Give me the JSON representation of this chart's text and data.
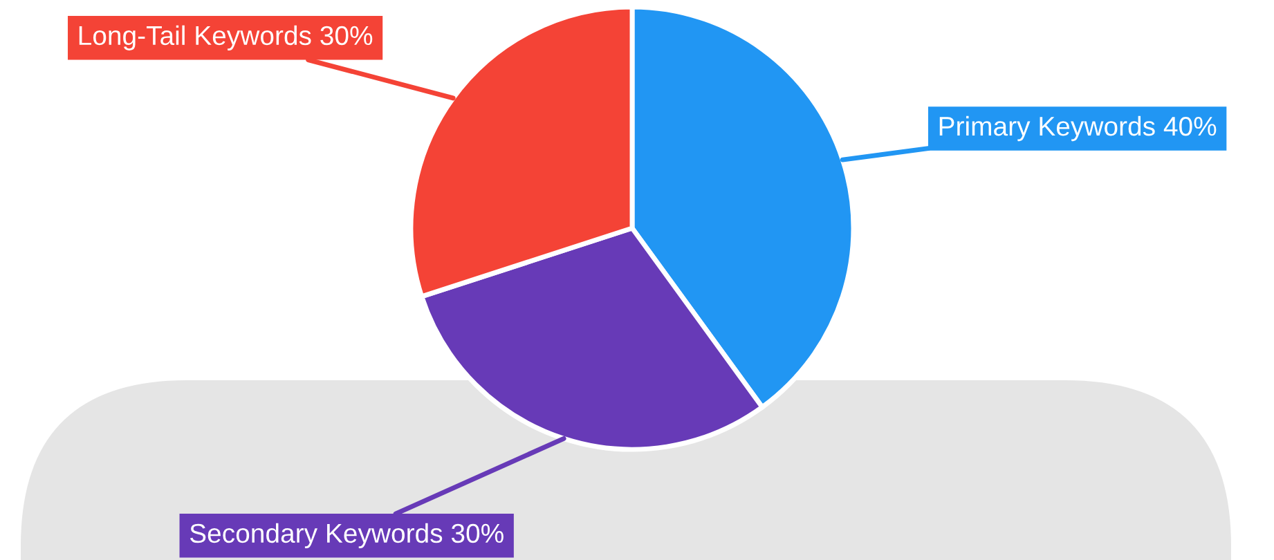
{
  "chart_data": {
    "type": "pie",
    "categories": [
      "Primary Keywords",
      "Secondary Keywords",
      "Long-Tail Keywords"
    ],
    "values": [
      40,
      30,
      30
    ],
    "value_labels": [
      "40%",
      "30%",
      "30%"
    ],
    "colors": [
      "#2196f3",
      "#673ab7",
      "#f44336"
    ]
  }
}
